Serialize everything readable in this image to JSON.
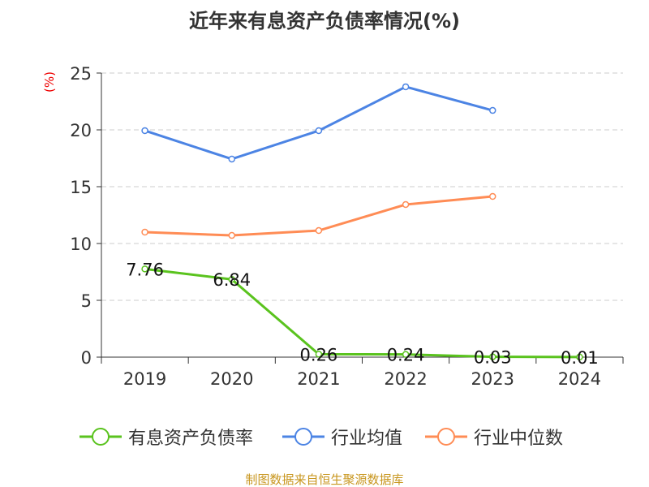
{
  "chart_data": {
    "type": "line",
    "title": "近年来有息资产负债率情况(%)",
    "ylabel": "(%)",
    "categories": [
      "2019",
      "2020",
      "2021",
      "2022",
      "2023",
      "2024"
    ],
    "ylim": [
      0,
      25
    ],
    "yticks": [
      "0",
      "5",
      "10",
      "15",
      "20",
      "25"
    ],
    "grid": true,
    "legend_position": "bottom",
    "series": [
      {
        "name": "有息资产负债率",
        "color": "#5ac31e",
        "values": [
          7.76,
          6.84,
          0.26,
          0.24,
          0.03,
          0.01
        ],
        "labels": [
          "7.76",
          "6.84",
          "0.26",
          "0.24",
          "0.03",
          "0.01"
        ]
      },
      {
        "name": "行业均值",
        "color": "#4c84e4",
        "values": [
          19.93,
          17.43,
          19.93,
          23.79,
          21.71,
          null
        ]
      },
      {
        "name": "行业中位数",
        "color": "#ff8c55",
        "values": [
          11.0,
          10.71,
          11.14,
          13.43,
          14.14,
          null
        ]
      }
    ]
  },
  "footer": "制图数据来自恒生聚源数据库"
}
